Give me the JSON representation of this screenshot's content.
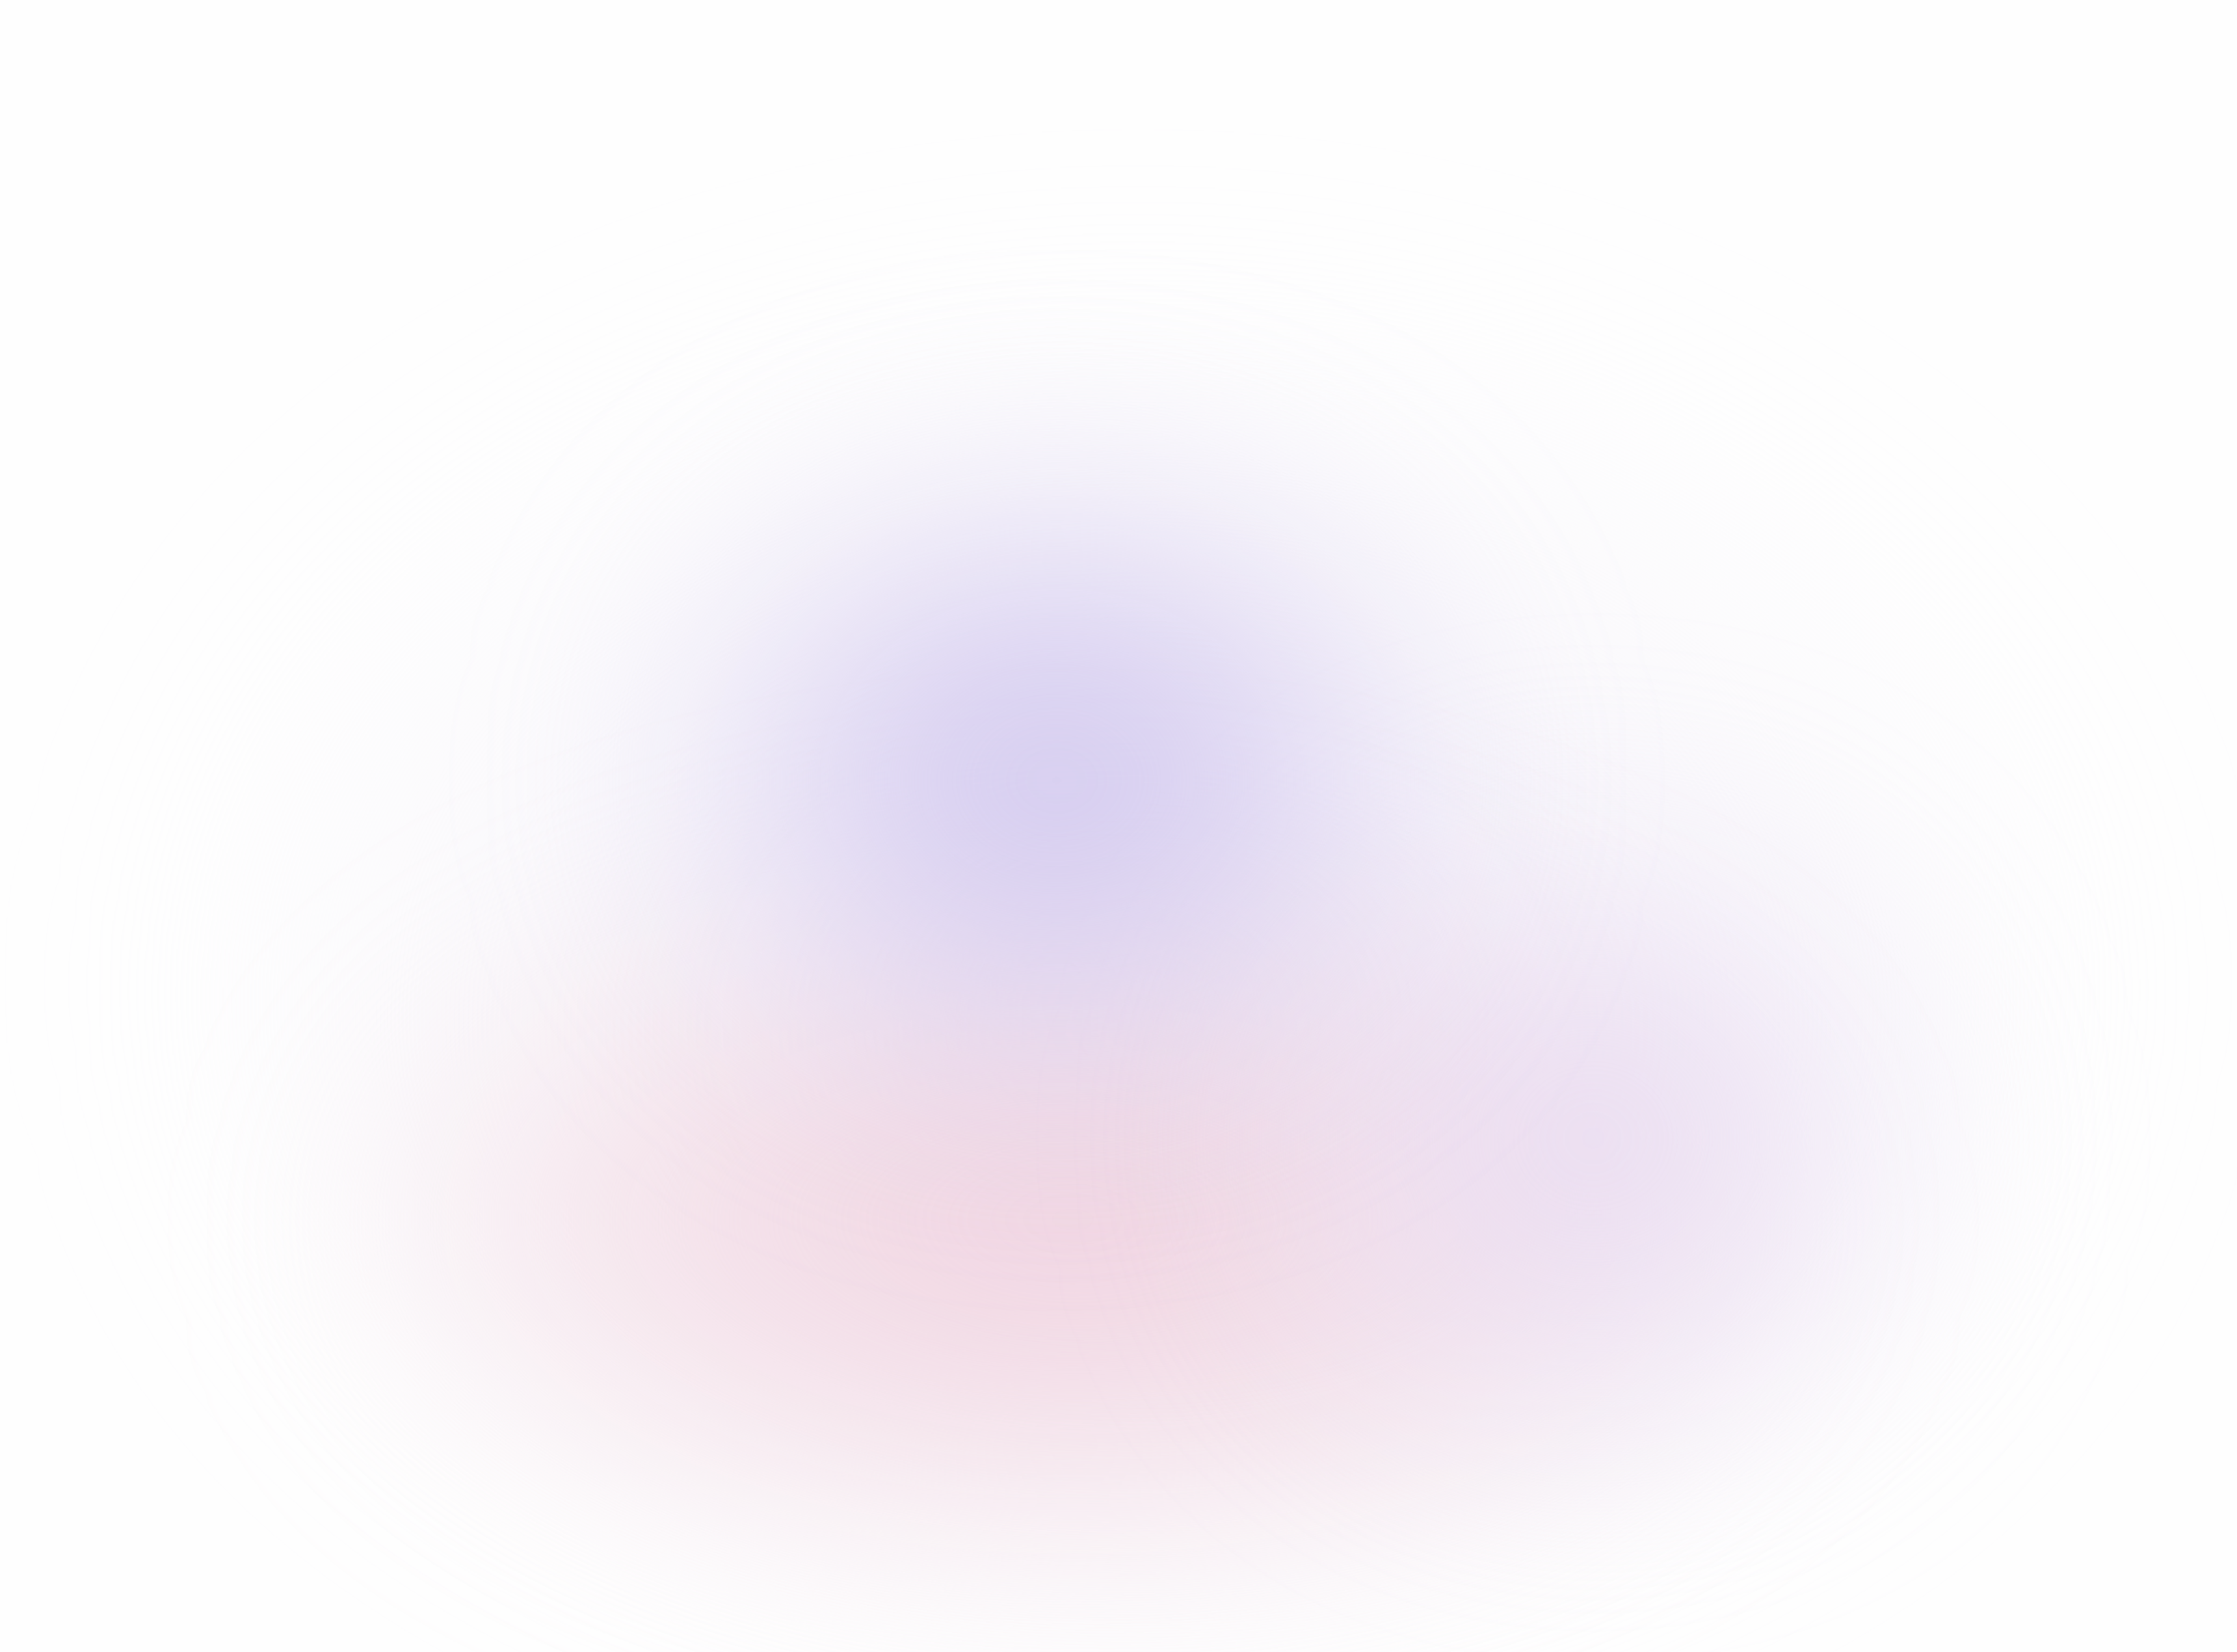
{
  "background": {
    "base_color": "#fefefe",
    "gradient_colors": [
      "#d8d0f0",
      "#efd6e0",
      "#e6d8ef"
    ]
  }
}
